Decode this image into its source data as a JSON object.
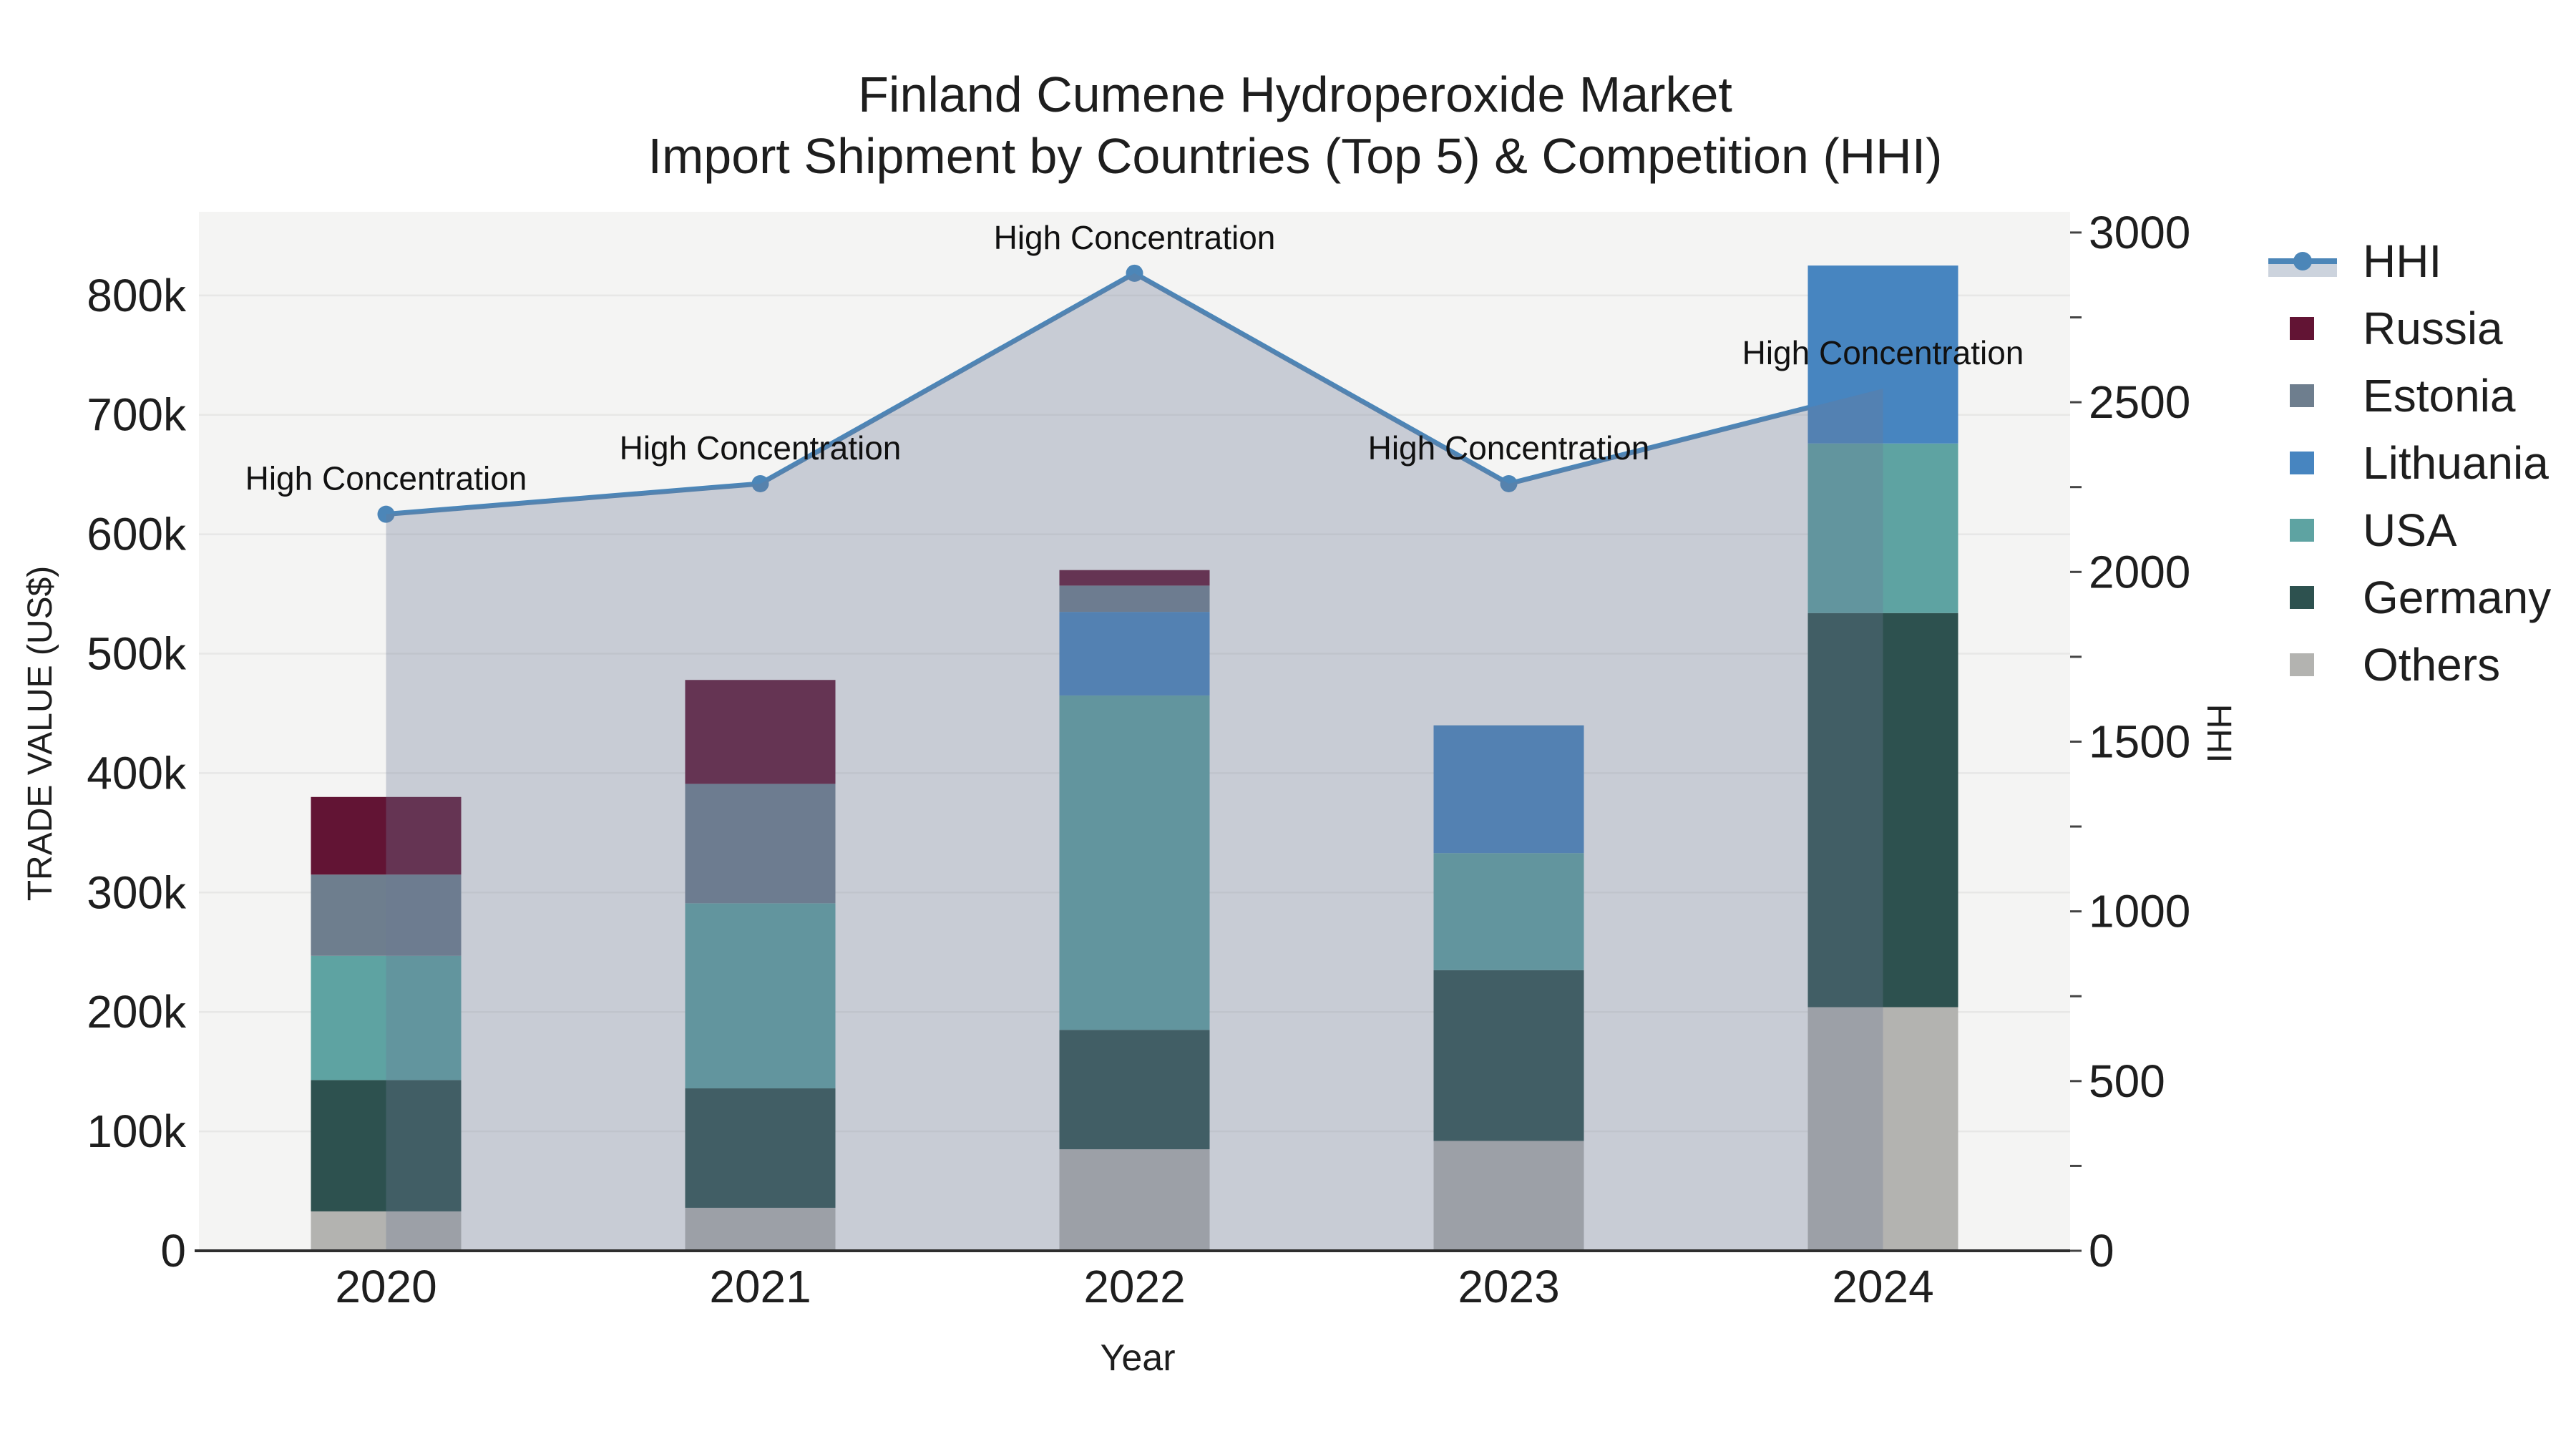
{
  "title": {
    "line1": "Finland Cumene Hydroperoxide Market",
    "line2": "Import Shipment by Countries (Top 5) & Competition (HHI)"
  },
  "x_axis": {
    "title": "Year",
    "categories": [
      "2020",
      "2021",
      "2022",
      "2023",
      "2024"
    ]
  },
  "y_left": {
    "title": "TRADE VALUE (US$)",
    "tick_labels": [
      "0",
      "100k",
      "200k",
      "300k",
      "400k",
      "500k",
      "600k",
      "700k",
      "800k"
    ],
    "tick_values": [
      0,
      100000,
      200000,
      300000,
      400000,
      500000,
      600000,
      700000,
      800000
    ],
    "max": 870000
  },
  "y_right": {
    "title": "HHI",
    "tick_labels": [
      "0",
      "500",
      "1000",
      "1500",
      "2000",
      "2500",
      "3000"
    ],
    "tick_values": [
      0,
      500,
      1000,
      1500,
      2000,
      2500,
      3000
    ],
    "minor_tick_step": 250,
    "max": 3061
  },
  "legend": {
    "items": [
      {
        "label": "HHI",
        "type": "line",
        "color": "#4C86B8",
        "fill": "#CCD3DD"
      },
      {
        "label": "Russia",
        "type": "swatch",
        "color": "#621434"
      },
      {
        "label": "Estonia",
        "type": "swatch",
        "color": "#6E7E8E"
      },
      {
        "label": "Lithuania",
        "type": "swatch",
        "color": "#4785C0"
      },
      {
        "label": "USA",
        "type": "swatch",
        "color": "#5EA3A2"
      },
      {
        "label": "Germany",
        "type": "swatch",
        "color": "#2D514F"
      },
      {
        "label": "Others",
        "type": "swatch",
        "color": "#B3B3B0"
      }
    ]
  },
  "chart_data": {
    "type": "bar+line",
    "categories": [
      "2020",
      "2021",
      "2022",
      "2023",
      "2024"
    ],
    "stack_order_note": "bar_series listed bottom to top of stack",
    "bar_series": [
      {
        "name": "Others",
        "color": "#B3B3B0",
        "values": [
          33000,
          36000,
          85000,
          92000,
          204000
        ]
      },
      {
        "name": "Germany",
        "color": "#2D514F",
        "values": [
          110000,
          100000,
          100000,
          143000,
          330000
        ]
      },
      {
        "name": "USA",
        "color": "#5EA3A2",
        "values": [
          104000,
          155000,
          280000,
          98000,
          142000
        ]
      },
      {
        "name": "Lithuania",
        "color": "#4785C0",
        "values": [
          0,
          0,
          70000,
          107000,
          149000
        ]
      },
      {
        "name": "Estonia",
        "color": "#6E7E8E",
        "values": [
          68000,
          100000,
          22000,
          0,
          0
        ]
      },
      {
        "name": "Russia",
        "color": "#621434",
        "values": [
          65000,
          87000,
          13000,
          0,
          0
        ]
      }
    ],
    "bar_totals": [
      380000,
      478000,
      570000,
      440000,
      825000
    ],
    "line_series": {
      "name": "HHI",
      "color": "#4C86B8",
      "fill_rgba": "rgba(109,122,150,0.32)",
      "values": [
        2170,
        2260,
        2880,
        2260,
        2540
      ]
    },
    "annotations": [
      "High Concentration",
      "High Concentration",
      "High Concentration",
      "High Concentration",
      "High Concentration"
    ],
    "ylim_left": [
      0,
      870000
    ],
    "ylim_right": [
      0,
      3061
    ],
    "grid": true,
    "legend_position": "right",
    "xlabel": "Year",
    "ylabel_left": "TRADE VALUE (US$)",
    "ylabel_right": "HHI"
  },
  "colors": {
    "page_bg": "#FFFFFF",
    "plot_bg": "#F4F4F3",
    "grid": "#E7E7E6",
    "axis_line": "#2E2E2E",
    "text": "#1E1E1E",
    "tick_text": "#1E1E1E"
  }
}
